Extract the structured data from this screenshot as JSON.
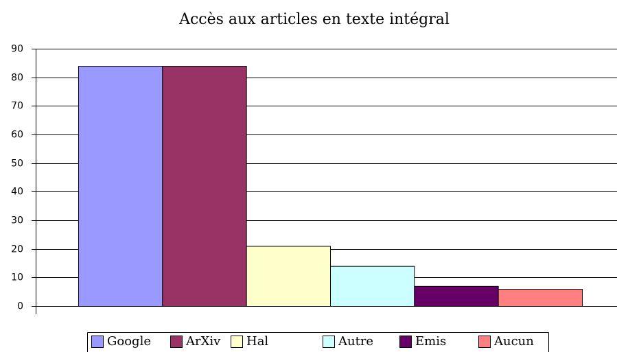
{
  "chart_data": {
    "type": "bar",
    "title": "Accès aux articles en texte intégral",
    "categories": [
      null
    ],
    "series": [
      {
        "name": "Google",
        "color": "#9999ff",
        "values": [
          84
        ]
      },
      {
        "name": "ArXiv",
        "color": "#993366",
        "values": [
          84
        ]
      },
      {
        "name": "Hal",
        "color": "#ffffcc",
        "values": [
          21
        ]
      },
      {
        "name": "Autre",
        "color": "#ccffff",
        "values": [
          14
        ]
      },
      {
        "name": "Emis",
        "color": "#660066",
        "values": [
          7
        ]
      },
      {
        "name": "Aucun",
        "color": "#ff8080",
        "values": [
          6
        ]
      }
    ],
    "ylim": [
      0,
      90
    ],
    "yticks": [
      0,
      10,
      20,
      30,
      40,
      50,
      60,
      70,
      80,
      90
    ],
    "grid": true,
    "legend": "bottom"
  }
}
